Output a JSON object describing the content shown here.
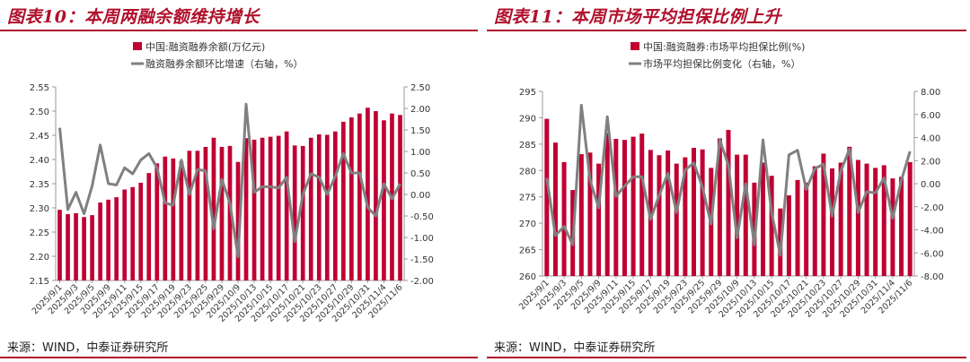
{
  "left": {
    "title": "图表10：本周两融余额维持增长",
    "source": "来源：WIND，中泰证券研究所",
    "chart_data": {
      "type": "bar",
      "title": "",
      "x": [
        "2025/9/1",
        "2025/9/2",
        "2025/9/3",
        "2025/9/4",
        "2025/9/5",
        "2025/9/8",
        "2025/9/9",
        "2025/9/10",
        "2025/9/11",
        "2025/9/12",
        "2025/9/15",
        "2025/9/16",
        "2025/9/17",
        "2025/9/18",
        "2025/9/19",
        "2025/9/22",
        "2025/9/23",
        "2025/9/24",
        "2025/9/25",
        "2025/9/26",
        "2025/9/29",
        "2025/9/30",
        "2025/10/9",
        "2025/10/10",
        "2025/10/13",
        "2025/10/14",
        "2025/10/15",
        "2025/10/16",
        "2025/10/17",
        "2025/10/20",
        "2025/10/21",
        "2025/10/22",
        "2025/10/23",
        "2025/10/24",
        "2025/10/27",
        "2025/10/28",
        "2025/10/29",
        "2025/10/30",
        "2025/10/31",
        "2025/11/3",
        "2025/11/4",
        "2025/11/5",
        "2025/11/6"
      ],
      "x_tick_labels": [
        "2025/9/1",
        "2025/9/3",
        "2025/9/5",
        "2025/9/9",
        "2025/9/11",
        "2025/9/15",
        "2025/9/17",
        "2025/9/19",
        "2025/9/23",
        "2025/9/25",
        "2025/9/29",
        "2025/10/9",
        "2025/10/13",
        "2025/10/15",
        "2025/10/17",
        "2025/10/21",
        "2025/10/23",
        "2025/10/27",
        "2025/10/29",
        "2025/10/31",
        "2025/11/4",
        "2025/11/6"
      ],
      "series": [
        {
          "name": "中国:融资融券余额(万亿元)",
          "axis": "left",
          "color": "#c00032",
          "values": [
            2.296,
            2.287,
            2.289,
            2.281,
            2.285,
            2.311,
            2.317,
            2.322,
            2.338,
            2.343,
            2.352,
            2.372,
            2.392,
            2.406,
            2.402,
            2.396,
            2.418,
            2.418,
            2.426,
            2.445,
            2.426,
            2.428,
            2.395,
            2.444,
            2.441,
            2.445,
            2.447,
            2.449,
            2.458,
            2.429,
            2.428,
            2.445,
            2.452,
            2.451,
            2.458,
            2.478,
            2.487,
            2.495,
            2.507,
            2.5,
            2.481,
            2.495,
            2.492
          ]
        },
        {
          "name": "融资融券余额环比增速（右轴，%）",
          "axis": "right",
          "color": "#808080",
          "values": [
            1.55,
            -0.35,
            0.05,
            -0.45,
            0.2,
            1.15,
            0.25,
            0.22,
            0.62,
            0.48,
            0.8,
            0.95,
            0.62,
            -0.2,
            -0.25,
            0.8,
            0.0,
            0.58,
            0.55,
            -0.8,
            0.35,
            -0.2,
            -1.45,
            2.1,
            0.05,
            0.18,
            0.18,
            0.15,
            0.4,
            -1.1,
            0.0,
            0.48,
            0.4,
            0.0,
            0.42,
            0.95,
            0.5,
            0.5,
            -0.3,
            -0.5,
            0.25,
            -0.1,
            0.25
          ]
        }
      ],
      "y_left": {
        "min": 2.15,
        "max": 2.55,
        "ticks": [
          "2.15",
          "2.20",
          "2.25",
          "2.30",
          "2.35",
          "2.40",
          "2.45",
          "2.50",
          "2.55"
        ]
      },
      "y_right": {
        "min": -2.0,
        "max": 2.5,
        "ticks": [
          "-2.00",
          "-1.50",
          "-1.00",
          "-0.50",
          "0.00",
          "0.50",
          "1.00",
          "1.50",
          "2.00",
          "2.50"
        ]
      },
      "legend": "top-left",
      "grid": false
    }
  },
  "right": {
    "title": "图表11：本周市场平均担保比例上升",
    "source": "来源：WIND，中泰证券研究所",
    "chart_data": {
      "type": "bar",
      "title": "",
      "x": [
        "2025/9/1",
        "2025/9/2",
        "2025/9/3",
        "2025/9/4",
        "2025/9/5",
        "2025/9/8",
        "2025/9/9",
        "2025/9/10",
        "2025/9/11",
        "2025/9/12",
        "2025/9/15",
        "2025/9/16",
        "2025/9/17",
        "2025/9/18",
        "2025/9/19",
        "2025/9/22",
        "2025/9/23",
        "2025/9/24",
        "2025/9/25",
        "2025/9/26",
        "2025/9/29",
        "2025/9/30",
        "2025/10/9",
        "2025/10/10",
        "2025/10/13",
        "2025/10/14",
        "2025/10/15",
        "2025/10/16",
        "2025/10/17",
        "2025/10/20",
        "2025/10/21",
        "2025/10/22",
        "2025/10/23",
        "2025/10/24",
        "2025/10/27",
        "2025/10/28",
        "2025/10/29",
        "2025/10/30",
        "2025/10/31",
        "2025/11/3",
        "2025/11/4",
        "2025/11/5",
        "2025/11/6"
      ],
      "x_tick_labels": [
        "2025/9/1",
        "2025/9/3",
        "2025/9/5",
        "2025/9/9",
        "2025/9/11",
        "2025/9/15",
        "2025/9/17",
        "2025/9/19",
        "2025/9/23",
        "2025/9/25",
        "2025/9/29",
        "2025/10/9",
        "2025/10/13",
        "2025/10/15",
        "2025/10/17",
        "2025/10/21",
        "2025/10/23",
        "2025/10/27",
        "2025/10/29",
        "2025/10/31",
        "2025/11/4",
        "2025/11/6"
      ],
      "series": [
        {
          "name": "中国:融资融券:市场平均担保比例(%)",
          "axis": "left",
          "color": "#c00032",
          "values": [
            289.8,
            285.3,
            281.6,
            276.3,
            283.1,
            283.4,
            281.3,
            287.1,
            286.0,
            285.8,
            286.4,
            287.0,
            283.9,
            282.9,
            283.8,
            281.3,
            282.5,
            284.3,
            284.0,
            280.5,
            286.1,
            287.7,
            283.0,
            283.0,
            277.7,
            281.5,
            279.0,
            272.8,
            275.3,
            278.2,
            277.7,
            280.8,
            283.2,
            280.4,
            281.5,
            284.5,
            282.0,
            281.3,
            280.5,
            281.0,
            278.5,
            278.8,
            281.6
          ]
        },
        {
          "name": "市场平均担保比例变化（右轴，%）",
          "axis": "right",
          "color": "#808080",
          "values": [
            0.5,
            -4.5,
            -3.7,
            -5.3,
            6.8,
            0.3,
            -2.1,
            5.8,
            -1.1,
            -0.2,
            0.6,
            0.6,
            -3.1,
            -1.0,
            0.9,
            -2.5,
            1.2,
            1.8,
            -0.3,
            -3.5,
            3.8,
            1.6,
            -4.7,
            0.0,
            -5.3,
            3.8,
            -2.5,
            -6.2,
            2.5,
            2.9,
            -0.5,
            1.3,
            1.7,
            -2.8,
            1.1,
            3.0,
            -2.5,
            -0.7,
            -0.8,
            0.5,
            -3.0,
            0.3,
            2.8
          ]
        }
      ],
      "y_left": {
        "min": 260,
        "max": 295,
        "ticks": [
          "260",
          "265",
          "270",
          "275",
          "280",
          "285",
          "290",
          "295"
        ]
      },
      "y_right": {
        "min": -8.0,
        "max": 8.0,
        "ticks": [
          "-8.00",
          "-6.00",
          "-4.00",
          "-2.00",
          "0.00",
          "2.00",
          "4.00",
          "6.00",
          "8.00"
        ]
      },
      "legend": "top-left",
      "grid": false
    }
  }
}
